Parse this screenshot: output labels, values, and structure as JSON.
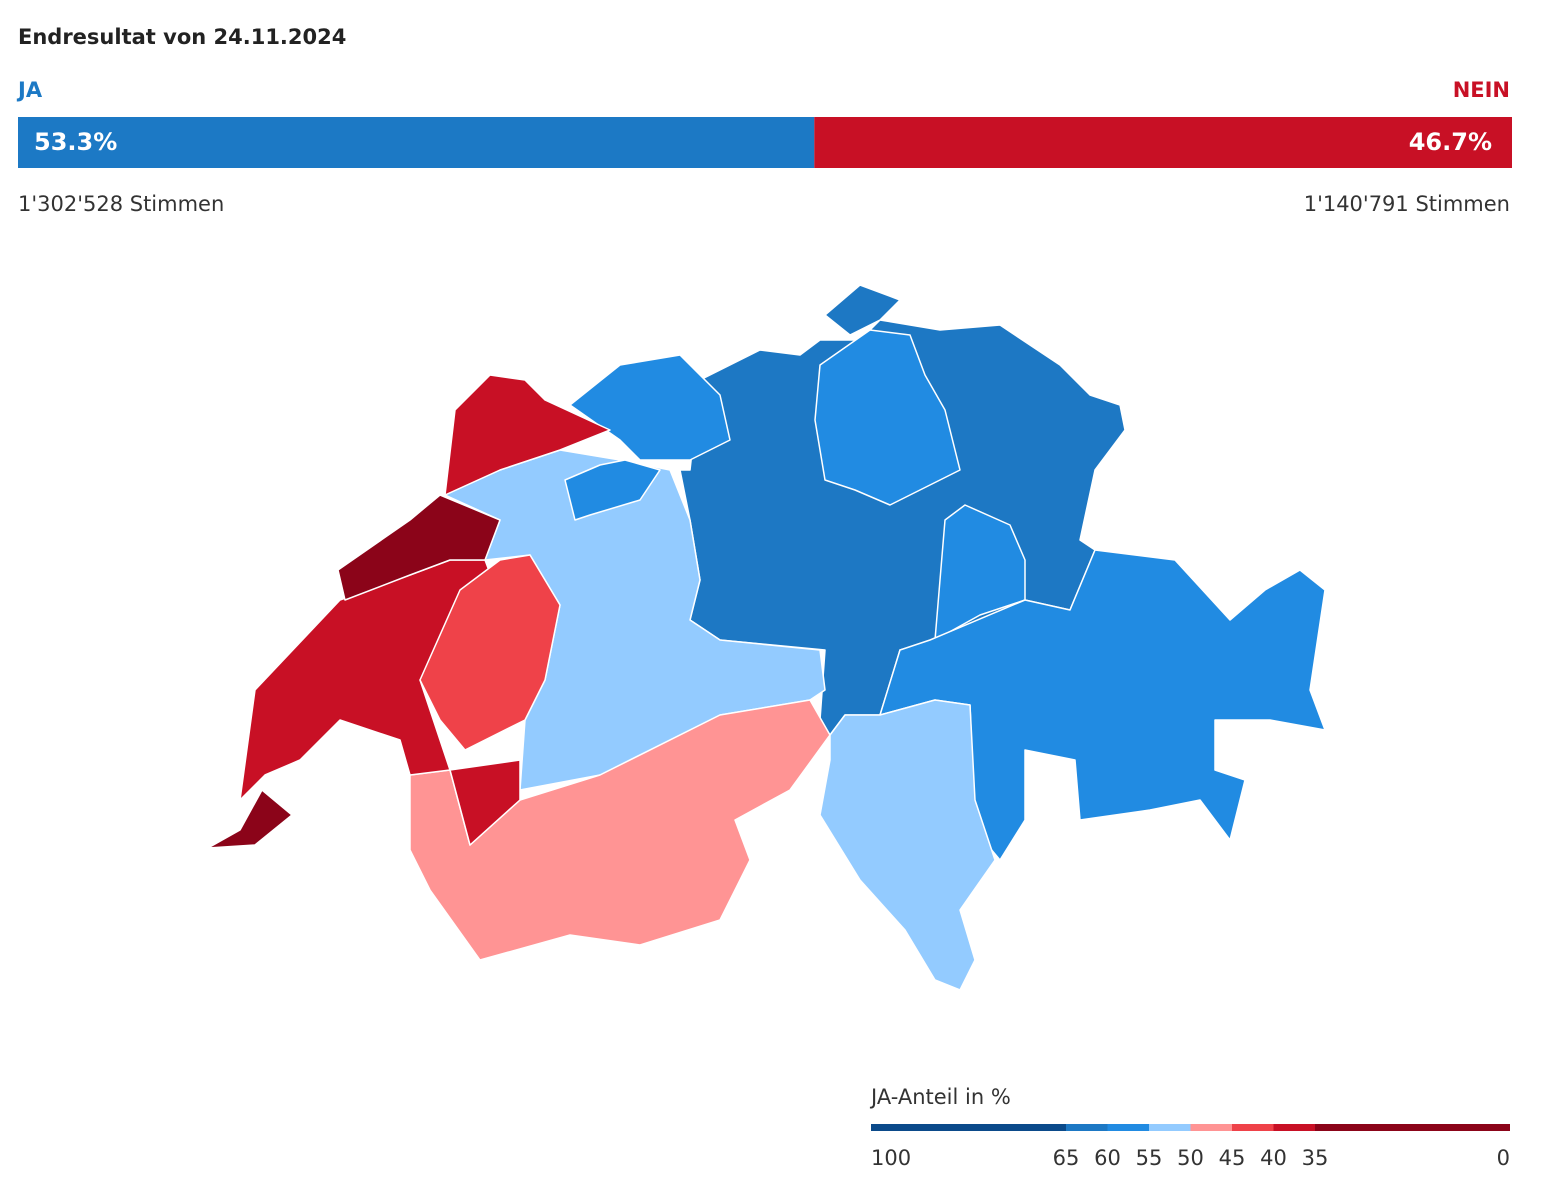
{
  "header": {
    "title": "Endresultat von 24.11.2024"
  },
  "result": {
    "ja": {
      "label": "JA",
      "share": {
        "value": 53.3,
        "label": "53.3%"
      },
      "votes": "1'302'528 Stimmen",
      "color": "#1c79c5"
    },
    "nein": {
      "label": "NEIN",
      "share": {
        "value": 46.7,
        "label": "46.7%"
      },
      "votes": "1'140'791 Stimmen",
      "color": "#c81025"
    }
  },
  "legend": {
    "title": "JA-Anteil in %",
    "ticks": [
      100,
      65,
      60,
      55,
      50,
      45,
      40,
      35,
      0
    ],
    "colors": [
      "#0b4a8a",
      "#1d78c4",
      "#218be2",
      "#93cbff",
      "#ff9494",
      "#ef4249",
      "#c81025",
      "#8b0419"
    ]
  }
}
